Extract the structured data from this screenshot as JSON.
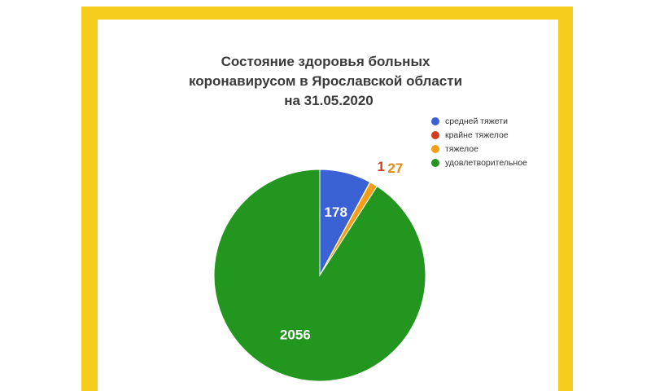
{
  "chart_data": {
    "type": "pie",
    "title_lines": [
      "Состояние здоровья больных",
      "коронавирусом в Ярославской области",
      "на  31.05.2020"
    ],
    "slices": [
      {
        "name": "средней тяжети",
        "value": 178,
        "color": "#3a62d4",
        "label_color": "#ffffff"
      },
      {
        "name": "крайне тяжелое",
        "value": 1,
        "color": "#d63a1e",
        "label_color": "#d63a1e"
      },
      {
        "name": "тяжелое",
        "value": 27,
        "color": "#f49d18",
        "label_color": "#e08a14"
      },
      {
        "name": "удовлетворительное",
        "value": 2056,
        "color": "#22961f",
        "label_color": "#ffffff"
      }
    ],
    "legend_position": "top-right"
  },
  "colors": {
    "frame": "#f6cd1c",
    "panel": "#ffffff",
    "title": "#3a3a3a"
  }
}
